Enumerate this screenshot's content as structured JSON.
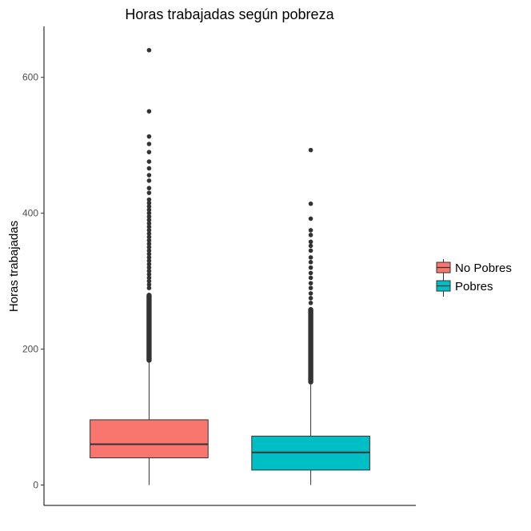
{
  "chart_data": {
    "type": "box",
    "title": "Horas trabajadas según pobreza",
    "xlabel": "",
    "ylabel": "Horas trabajadas",
    "ylim": [
      -30,
      675
    ],
    "yticks": [
      0,
      200,
      400,
      600
    ],
    "ytick_labels": [
      "0",
      "200",
      "400",
      "600"
    ],
    "grid": false,
    "legend_position": "right",
    "series": [
      {
        "name": "No Pobres",
        "color": "#F8766D",
        "whisker_low": 0,
        "q1": 40,
        "median": 60,
        "q3": 96,
        "whisker_high": 180,
        "outlier_band": [
          180,
          283
        ],
        "outliers": [
          290,
          295,
          300,
          305,
          310,
          315,
          320,
          325,
          330,
          335,
          340,
          345,
          350,
          355,
          360,
          365,
          370,
          375,
          380,
          385,
          390,
          395,
          400,
          405,
          410,
          415,
          420,
          430,
          437,
          448,
          456,
          466,
          476,
          490,
          502,
          513,
          550,
          640
        ]
      },
      {
        "name": "Pobres",
        "color": "#00BFC4",
        "whisker_low": 0,
        "q1": 22,
        "median": 48,
        "q3": 72,
        "whisker_high": 148,
        "outlier_band": [
          148,
          262
        ],
        "outliers": [
          268,
          275,
          282,
          290,
          297,
          305,
          312,
          320,
          328,
          335,
          345,
          352,
          358,
          368,
          375,
          392,
          414,
          493
        ]
      }
    ]
  }
}
